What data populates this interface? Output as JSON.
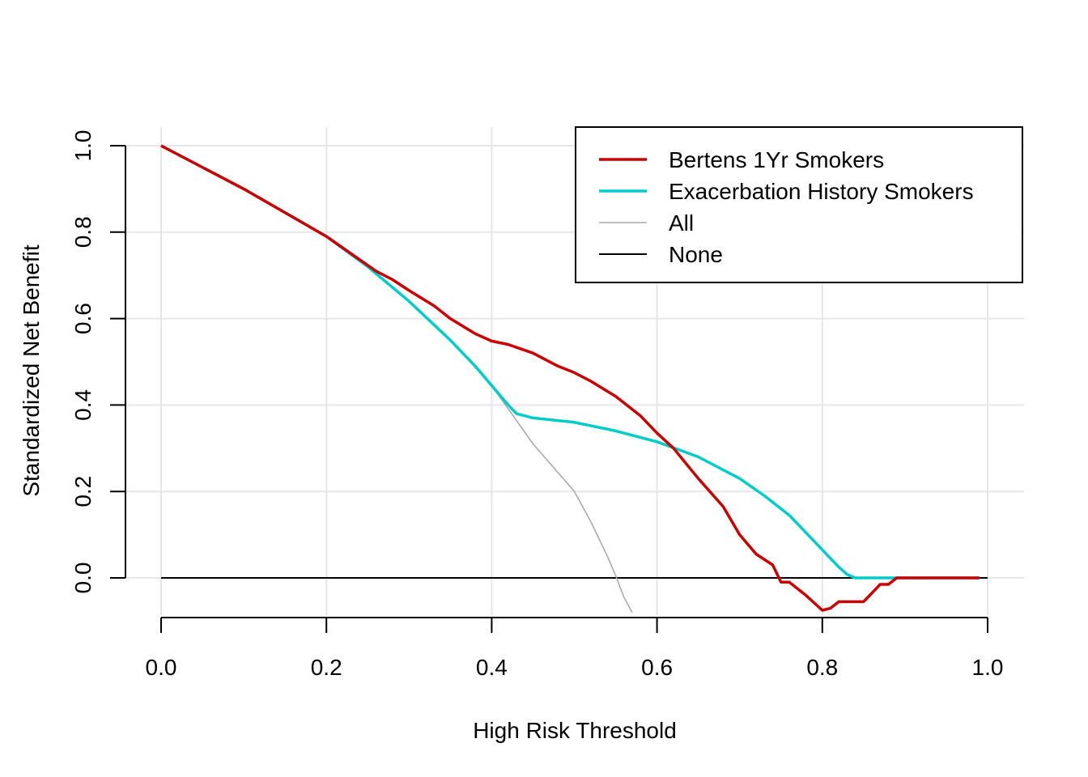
{
  "chart_data": {
    "type": "line",
    "title": "",
    "xlabel": "High Risk Threshold",
    "ylabel": "Standardized Net Benefit",
    "xlim": [
      0,
      1
    ],
    "ylim": [
      -0.08,
      1.0
    ],
    "xticks": [
      "0.0",
      "0.2",
      "0.4",
      "0.6",
      "0.8",
      "1.0"
    ],
    "yticks": [
      "0.0",
      "0.2",
      "0.4",
      "0.6",
      "0.8",
      "1.0"
    ],
    "grid": true,
    "legend_position": "top-right",
    "series": [
      {
        "name": "Bertens 1Yr Smokers",
        "color": "#cc0000",
        "x": [
          0,
          0.1,
          0.2,
          0.26,
          0.28,
          0.3,
          0.33,
          0.35,
          0.38,
          0.4,
          0.42,
          0.45,
          0.48,
          0.5,
          0.52,
          0.55,
          0.58,
          0.6,
          0.62,
          0.65,
          0.68,
          0.7,
          0.72,
          0.74,
          0.75,
          0.76,
          0.78,
          0.8,
          0.81,
          0.82,
          0.83,
          0.85,
          0.86,
          0.87,
          0.88,
          0.89,
          0.9,
          0.95,
          0.99
        ],
        "y": [
          1.0,
          0.9,
          0.79,
          0.71,
          0.69,
          0.665,
          0.63,
          0.6,
          0.565,
          0.548,
          0.54,
          0.52,
          0.49,
          0.475,
          0.455,
          0.42,
          0.375,
          0.335,
          0.3,
          0.23,
          0.165,
          0.1,
          0.055,
          0.03,
          -0.01,
          -0.01,
          -0.04,
          -0.075,
          -0.07,
          -0.055,
          -0.055,
          -0.055,
          -0.035,
          -0.015,
          -0.015,
          0.0,
          0.0,
          0.0,
          0.0
        ]
      },
      {
        "name": "Exacerbation History Smokers",
        "color": "#00cccc",
        "x": [
          0,
          0.1,
          0.2,
          0.25,
          0.3,
          0.35,
          0.38,
          0.4,
          0.42,
          0.43,
          0.45,
          0.5,
          0.55,
          0.6,
          0.65,
          0.7,
          0.73,
          0.76,
          0.79,
          0.81,
          0.82,
          0.83,
          0.84,
          0.9,
          0.99
        ],
        "y": [
          1.0,
          0.9,
          0.79,
          0.72,
          0.64,
          0.55,
          0.49,
          0.445,
          0.4,
          0.38,
          0.37,
          0.36,
          0.34,
          0.315,
          0.28,
          0.23,
          0.19,
          0.145,
          0.085,
          0.045,
          0.025,
          0.008,
          0.0,
          0.0,
          0.0
        ]
      },
      {
        "name": "All",
        "color": "#aaaaaa",
        "x": [
          0,
          0.1,
          0.2,
          0.25,
          0.3,
          0.35,
          0.4,
          0.45,
          0.5,
          0.52,
          0.54,
          0.55,
          0.56,
          0.57
        ],
        "y": [
          1.0,
          0.9,
          0.79,
          0.72,
          0.64,
          0.55,
          0.445,
          0.31,
          0.2,
          0.13,
          0.05,
          0.005,
          -0.045,
          -0.08
        ]
      },
      {
        "name": "None",
        "color": "#000000",
        "x": [
          0,
          1
        ],
        "y": [
          0,
          0
        ]
      }
    ]
  }
}
